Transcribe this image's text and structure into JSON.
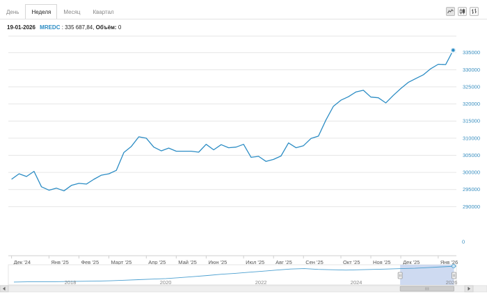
{
  "tabs": [
    {
      "label": "День",
      "active": false
    },
    {
      "label": "Неделя",
      "active": true
    },
    {
      "label": "Месяц",
      "active": false
    },
    {
      "label": "Квартал",
      "active": false
    }
  ],
  "tools": [
    "area-chart-icon",
    "candlestick-icon",
    "bar-ohlc-icon"
  ],
  "info": {
    "date": "19-01-2026",
    "ticker": "MREDC",
    "sep": " : ",
    "value": "335 687,84,",
    "volume_label": "Объём:",
    "volume_value": "0"
  },
  "colors": {
    "line": "#2b8cc4",
    "grid": "#e6e6e6",
    "navigator_fill": "#c5d3ee",
    "navigator_line": "#4a9fd0"
  },
  "chart_data": {
    "type": "line",
    "series": [
      {
        "name": "MREDC",
        "x": [
          "2024-12-02",
          "2024-12-09",
          "2024-12-16",
          "2024-12-23",
          "2024-12-30",
          "2025-01-06",
          "2025-01-13",
          "2025-01-20",
          "2025-01-27",
          "2025-02-03",
          "2025-02-10",
          "2025-02-17",
          "2025-02-24",
          "2025-03-03",
          "2025-03-10",
          "2025-03-17",
          "2025-03-24",
          "2025-03-31",
          "2025-04-07",
          "2025-04-14",
          "2025-04-21",
          "2025-04-28",
          "2025-05-05",
          "2025-05-12",
          "2025-05-19",
          "2025-05-26",
          "2025-06-02",
          "2025-06-09",
          "2025-06-16",
          "2025-06-23",
          "2025-06-30",
          "2025-07-07",
          "2025-07-14",
          "2025-07-21",
          "2025-07-28",
          "2025-08-04",
          "2025-08-11",
          "2025-08-18",
          "2025-08-25",
          "2025-09-01",
          "2025-09-08",
          "2025-09-15",
          "2025-09-22",
          "2025-09-29",
          "2025-10-06",
          "2025-10-13",
          "2025-10-20",
          "2025-10-27",
          "2025-11-03",
          "2025-11-10",
          "2025-11-17",
          "2025-11-24",
          "2025-12-01",
          "2025-12-08",
          "2025-12-15",
          "2025-12-22",
          "2025-12-29",
          "2026-01-05",
          "2026-01-12",
          "2026-01-19"
        ],
        "values": [
          298000,
          299600,
          298800,
          300300,
          295800,
          294800,
          295400,
          294600,
          296200,
          296800,
          296600,
          298000,
          299200,
          299600,
          300600,
          305800,
          307600,
          310400,
          310000,
          307400,
          306300,
          307100,
          306200,
          306200,
          306200,
          305900,
          308200,
          306600,
          308100,
          307200,
          307400,
          308200,
          304400,
          304700,
          303200,
          303800,
          304800,
          308600,
          307200,
          307800,
          309900,
          310600,
          315300,
          319300,
          321100,
          322100,
          323500,
          324000,
          322000,
          321800,
          320300,
          322500,
          324500,
          326300,
          327400,
          328500,
          330300,
          331600,
          331500,
          335700
        ]
      }
    ],
    "xlim": [
      "2024-11-29",
      "2026-01-22"
    ],
    "ylim": [
      285000,
      339000
    ],
    "y_ticks": [
      290000,
      295000,
      300000,
      305000,
      310000,
      315000,
      320000,
      325000,
      330000,
      335000
    ],
    "y_tick_labels": [
      "290000",
      "295000",
      "300000",
      "305000",
      "310000",
      "315000",
      "320000",
      "325000",
      "330000",
      "335000"
    ],
    "volume_zero_label": "0",
    "x_ticks": [
      "2024-12-02",
      "2025-01-06",
      "2025-02-03",
      "2025-03-03",
      "2025-04-07",
      "2025-05-05",
      "2025-06-02",
      "2025-07-07",
      "2025-08-04",
      "2025-09-01",
      "2025-10-06",
      "2025-11-03",
      "2025-12-01",
      "2026-01-05"
    ],
    "x_tick_labels": [
      "Дек '24",
      "Янв '25",
      "Фев '25",
      "Март '25",
      "Апр '25",
      "Май '25",
      "Июн '25",
      "Июл '25",
      "Авг '25",
      "Сен '25",
      "Окт '25",
      "Ноя '25",
      "Дек '25",
      "Янв '26"
    ],
    "grid": true,
    "navigator": {
      "x_tick_labels": [
        "2018",
        "2020",
        "2022",
        "2024",
        "2026"
      ],
      "x_ticks": [
        2018,
        2020,
        2022,
        2024,
        2026
      ],
      "range": [
        2016.7,
        2026.1
      ],
      "selection": [
        2024.92,
        2026.05
      ],
      "values": [
        0.12,
        0.13,
        0.13,
        0.14,
        0.15,
        0.16,
        0.17,
        0.19,
        0.22,
        0.25,
        0.28,
        0.31,
        0.36,
        0.42,
        0.48,
        0.55,
        0.6,
        0.66,
        0.72,
        0.78,
        0.84,
        0.86,
        0.82,
        0.8,
        0.78,
        0.8,
        0.82,
        0.84,
        0.86,
        0.88,
        0.92,
        0.96,
        1.0
      ]
    }
  }
}
